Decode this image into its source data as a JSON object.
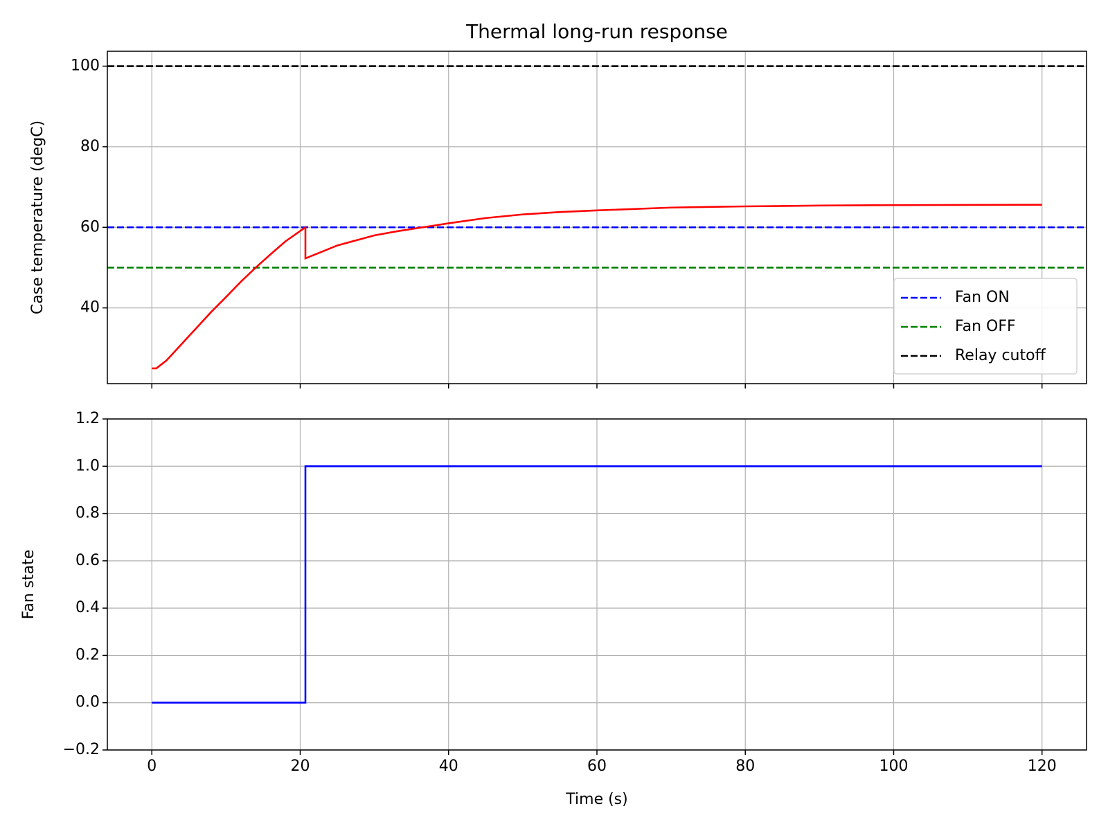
{
  "chart_data": [
    {
      "type": "line",
      "title": "Thermal long-run response",
      "ylabel": "Case temperature (degC)",
      "xlim": [
        -6,
        126
      ],
      "ylim": [
        21.2,
        103.7
      ],
      "xticks": [
        0,
        20,
        40,
        60,
        80,
        100,
        120
      ],
      "yticks": [
        40,
        60,
        80,
        100
      ],
      "grid": true,
      "show_xtick_labels": false,
      "series": [
        {
          "color": "#ff0000",
          "x": [
            0,
            0.6,
            2,
            4,
            6,
            8,
            10,
            12,
            14,
            16,
            18,
            20.7,
            20.7,
            23,
            25,
            28,
            30,
            33,
            36.5,
            40,
            45,
            50,
            55,
            60,
            70,
            80,
            90,
            100,
            110,
            120
          ],
          "values": [
            25,
            25,
            27,
            31,
            35,
            39,
            42.7,
            46.5,
            50,
            53.3,
            56.5,
            60,
            52.3,
            54,
            55.5,
            57,
            58,
            59,
            60,
            61,
            62.3,
            63.2,
            63.8,
            64.2,
            64.9,
            65.2,
            65.4,
            65.5,
            65.55,
            65.6
          ]
        }
      ],
      "hlines": [
        {
          "name": "Fan ON",
          "color": "#0000ff",
          "y": 60
        },
        {
          "name": "Fan OFF",
          "color": "#008000",
          "y": 50
        },
        {
          "name": "Relay cutoff",
          "color": "#000000",
          "y": 100
        }
      ],
      "legend": "lower right"
    },
    {
      "type": "line",
      "ylabel": "Fan state",
      "xlabel": "Time (s)",
      "xlim": [
        -6,
        126
      ],
      "ylim": [
        -0.2,
        1.2
      ],
      "xticks": [
        0,
        20,
        40,
        60,
        80,
        100,
        120
      ],
      "yticks": [
        {
          "value": -0.2,
          "label": "−0.2"
        },
        {
          "value": 0,
          "label": "0.0"
        },
        0.2,
        0.4,
        0.6,
        0.8,
        {
          "value": 1,
          "label": "1.0"
        },
        1.2
      ],
      "grid": true,
      "show_xtick_labels": true,
      "series": [
        {
          "color": "#0000ff",
          "x": [
            0,
            20.7,
            20.7,
            120
          ],
          "values": [
            0,
            0,
            1,
            1
          ]
        }
      ]
    }
  ]
}
